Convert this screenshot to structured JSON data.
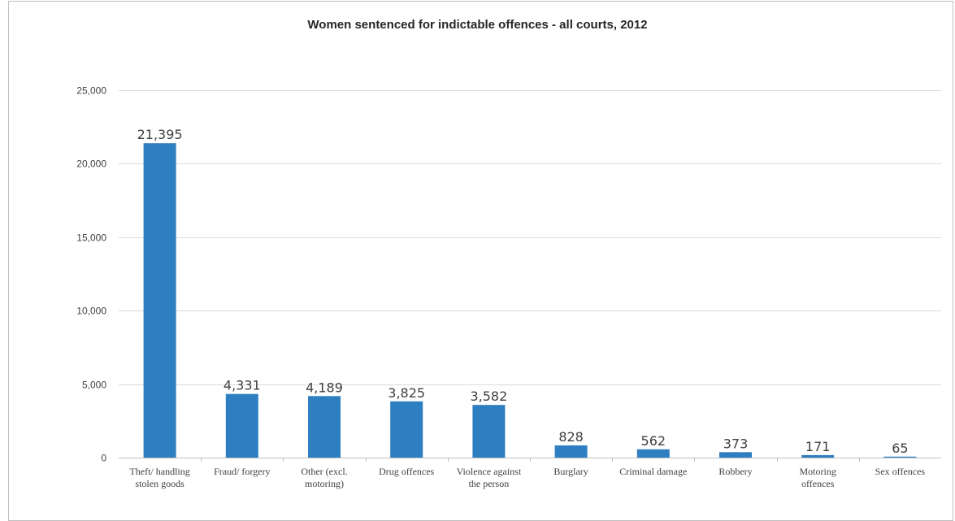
{
  "chart_data": {
    "type": "bar",
    "title": "Women sentenced for indictable offences - all courts, 2012",
    "xlabel": "",
    "ylabel": "",
    "categories": [
      [
        "Theft/ handling",
        "stolen goods"
      ],
      [
        "Fraud/ forgery"
      ],
      [
        "Other (excl.",
        "motoring)"
      ],
      [
        "Drug offences"
      ],
      [
        "Violence against",
        "the person"
      ],
      [
        "Burglary"
      ],
      [
        "Criminal damage"
      ],
      [
        "Robbery"
      ],
      [
        "Motoring",
        "offences"
      ],
      [
        "Sex offences"
      ]
    ],
    "values": [
      21395,
      4331,
      4189,
      3825,
      3582,
      828,
      562,
      373,
      171,
      65
    ],
    "value_labels": [
      "21,395",
      "4,331",
      "4,189",
      "3,825",
      "3,582",
      "828",
      "562",
      "373",
      "171",
      "65"
    ],
    "ylim": [
      0,
      25000
    ],
    "yticks": [
      0,
      5000,
      10000,
      15000,
      20000,
      25000
    ],
    "ytick_labels": [
      "0",
      "5,000",
      "10,000",
      "15,000",
      "20,000",
      "25,000"
    ],
    "grid": true,
    "legend": "none",
    "bar_color": "#2e7fc1"
  }
}
